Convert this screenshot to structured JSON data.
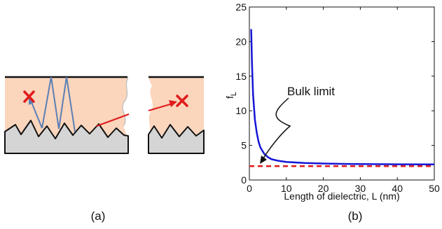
{
  "panel_a": {
    "caption": "(a)"
  },
  "panel_b": {
    "caption": "(b)",
    "annotation": "Bulk limit"
  },
  "chart_data": {
    "type": "line",
    "xlabel": "Length of dielectric, L (nm)",
    "ylabel": "f",
    "ylabel_subscript": "L",
    "xlim": [
      0,
      50
    ],
    "ylim": [
      0,
      25
    ],
    "x_ticks": [
      "0",
      "10",
      "20",
      "30",
      "40",
      "50"
    ],
    "y_ticks": [
      "0",
      "5",
      "10",
      "15",
      "20",
      "25"
    ],
    "series": [
      {
        "style": "solid",
        "color": "#1515d6",
        "x": [
          0.5,
          0.7,
          1,
          1.5,
          2,
          2.5,
          3,
          4,
          5,
          6,
          8,
          10,
          15,
          20,
          25,
          30,
          40,
          50
        ],
        "y": [
          21.8,
          17.0,
          12.3,
          8.7,
          6.8,
          5.5,
          4.7,
          3.8,
          3.3,
          3.0,
          2.75,
          2.6,
          2.45,
          2.38,
          2.33,
          2.3,
          2.27,
          2.25
        ]
      },
      {
        "style": "dashed",
        "color": "#e01b1b",
        "x": [
          0,
          50
        ],
        "y": [
          2.0,
          2.0
        ]
      }
    ]
  }
}
